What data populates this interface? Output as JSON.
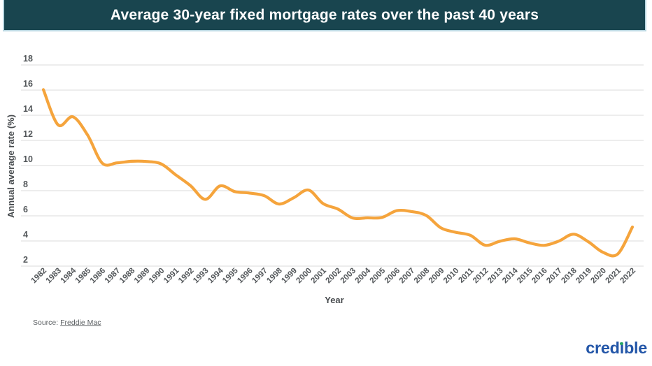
{
  "header": {
    "title": "Average 30-year fixed mortgage rates over the past 40 years"
  },
  "chart_data": {
    "type": "line",
    "title": "Average 30-year fixed mortgage rates over the past 40 years",
    "xlabel": "Year",
    "ylabel": "Annual average rate (%)",
    "categories": [
      "1982",
      "1983",
      "1984",
      "1985",
      "1986",
      "1987",
      "1988",
      "1989",
      "1990",
      "1991",
      "1992",
      "1993",
      "1994",
      "1995",
      "1996",
      "1997",
      "1998",
      "1999",
      "2000",
      "2001",
      "2002",
      "2003",
      "2004",
      "2005",
      "2006",
      "2007",
      "2008",
      "2009",
      "2010",
      "2011",
      "2012",
      "2013",
      "2014",
      "2015",
      "2016",
      "2017",
      "2018",
      "2019",
      "2020",
      "2021",
      "2022"
    ],
    "values": [
      16.04,
      13.24,
      13.88,
      12.43,
      10.19,
      10.21,
      10.34,
      10.32,
      10.13,
      9.25,
      8.39,
      7.31,
      8.38,
      7.93,
      7.81,
      7.6,
      6.94,
      7.44,
      8.05,
      6.97,
      6.54,
      5.83,
      5.84,
      5.87,
      6.41,
      6.34,
      6.03,
      5.04,
      4.69,
      4.45,
      3.66,
      3.98,
      4.17,
      3.85,
      3.65,
      3.99,
      4.54,
      3.94,
      3.1,
      2.96,
      5.11
    ],
    "ylim": [
      2,
      18
    ],
    "yticks": [
      2,
      4,
      6,
      8,
      10,
      12,
      14,
      16,
      18
    ],
    "grid": "horizontal gridlines only",
    "legend": "none",
    "smooth": true,
    "line_color": "#F5A43C"
  },
  "footer": {
    "source_prefix": "Source:",
    "source_link": "Freddie Mac",
    "logo": {
      "text": "credible",
      "part1": "cred",
      "part2": "ı",
      "part3": "ble",
      "blue": "#2356A8",
      "green": "#27A567"
    }
  },
  "colors": {
    "titlebar_bg": "#19454F",
    "titlebar_border": "#BAD7E1",
    "title_text": "#FFFFFF",
    "line": "#F5A43C",
    "gridline": "#E2E2E2",
    "tick_text": "#54585B"
  }
}
